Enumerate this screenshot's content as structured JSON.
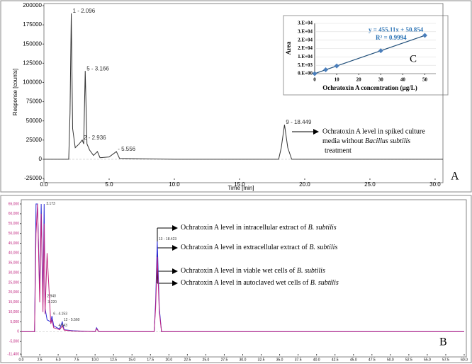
{
  "chart_data": [
    {
      "type": "line",
      "label": "A",
      "xlabel": "Time [min]",
      "ylabel": "Response [counts]",
      "color": "#333333",
      "xlim": [
        0,
        30.6
      ],
      "ylim": [
        -25000,
        200000
      ],
      "xticks": [
        {
          "value": 0,
          "label": "0.0"
        },
        {
          "value": 5,
          "label": "5.0"
        },
        {
          "value": 10,
          "label": "10.0"
        },
        {
          "value": 15,
          "label": "15.0"
        },
        {
          "value": 20,
          "label": "20.0"
        },
        {
          "value": 25,
          "label": "25.0"
        },
        {
          "value": 30,
          "label": "30.0"
        }
      ],
      "yticks": [
        -25000,
        0,
        25000,
        50000,
        75000,
        100000,
        125000,
        150000,
        175000,
        200000
      ],
      "x": [
        0,
        1.9,
        2.0,
        2.096,
        2.2,
        2.4,
        2.7,
        2.936,
        3.05,
        3.166,
        3.3,
        3.5,
        3.8,
        4.1,
        4.3,
        5.0,
        5.556,
        5.8,
        10,
        18.0,
        18.2,
        18.449,
        18.7,
        19.0,
        30.6
      ],
      "values": [
        0,
        0,
        60000,
        190000,
        40000,
        15000,
        20000,
        25000,
        20000,
        115000,
        20000,
        12000,
        5000,
        10000,
        2000,
        3000,
        10000,
        1000,
        0,
        0,
        15000,
        45000,
        15000,
        0,
        0
      ],
      "peak_labels": [
        {
          "label": "1 - 2.096",
          "x": 2.096,
          "y": 190000
        },
        {
          "label": "5 - 3.166",
          "x": 3.166,
          "y": 115000
        },
        {
          "label": "2 - 2.936",
          "x": 2.936,
          "y": 25000
        },
        {
          "label": "- 5.556",
          "x": 5.556,
          "y": 10000
        },
        {
          "label": "9 - 18.449",
          "x": 18.449,
          "y": 45000
        }
      ],
      "annotation": [
        "Ochratoxin A level in spiked culture",
        "media without ",
        "Bacillus subtilis",
        " treatment"
      ]
    },
    {
      "type": "scatter",
      "label": "C",
      "xlabel": "Ochratoxin A concentration (µg/L)",
      "ylabel": "Area",
      "color": "#4a7ebb",
      "xlim": [
        0,
        55
      ],
      "ylim": [
        0,
        30000
      ],
      "xticks": [
        0,
        10,
        20,
        30,
        40,
        50
      ],
      "yticks": [
        {
          "value": 0,
          "label": "0.E+00"
        },
        {
          "value": 5000,
          "label": "5.E+03"
        },
        {
          "value": 10000,
          "label": "1.E+04"
        },
        {
          "value": 15000,
          "label": "2.E+04"
        },
        {
          "value": 20000,
          "label": "2.E+04"
        },
        {
          "value": 25000,
          "label": "3.E+04"
        },
        {
          "value": 30000,
          "label": "3.E+04"
        }
      ],
      "x": [
        0,
        5,
        10,
        30,
        50
      ],
      "values": [
        0,
        2326,
        4600,
        13700,
        22800
      ],
      "trendline": {
        "label": "y = 455.11x + 50.854",
        "slope": 455.11,
        "intercept": 50.854,
        "r2_label": "R² = 0.9994"
      }
    },
    {
      "type": "line",
      "label": "B",
      "xlim": [
        0,
        60
      ],
      "ylim": [
        -11400,
        65000
      ],
      "xticks": [
        {
          "value": 0,
          "label": "0.0"
        },
        {
          "value": 2.5,
          "label": "2.5"
        },
        {
          "value": 5,
          "label": "5.0"
        },
        {
          "value": 7.5,
          "label": "7.5"
        },
        {
          "value": 10,
          "label": "10.0"
        },
        {
          "value": 12.5,
          "label": "12.5"
        },
        {
          "value": 15,
          "label": "15.0"
        },
        {
          "value": 17.5,
          "label": "17.5"
        },
        {
          "value": 20,
          "label": "20.0"
        },
        {
          "value": 22.5,
          "label": "22.5"
        },
        {
          "value": 25,
          "label": "25.0"
        },
        {
          "value": 27.5,
          "label": "27.5"
        },
        {
          "value": 30,
          "label": "30.0"
        },
        {
          "value": 32.5,
          "label": "32.5"
        },
        {
          "value": 35,
          "label": "35.0"
        },
        {
          "value": 37.5,
          "label": "37.5"
        },
        {
          "value": 40,
          "label": "40.0"
        },
        {
          "value": 42.5,
          "label": "42.5"
        },
        {
          "value": 45,
          "label": "45.0"
        },
        {
          "value": 47.5,
          "label": "47.5"
        },
        {
          "value": 50,
          "label": "50.0"
        },
        {
          "value": 52.5,
          "label": "52.5"
        },
        {
          "value": 55,
          "label": "55.0"
        },
        {
          "value": 57.5,
          "label": "57.5"
        },
        {
          "value": 60,
          "label": "60.0"
        }
      ],
      "yticks": [
        {
          "value": -11400,
          "label": "-11,400"
        },
        {
          "value": -5000,
          "label": "-5,000"
        },
        {
          "value": 0,
          "label": "0"
        },
        {
          "value": 5000,
          "label": "5,000"
        },
        {
          "value": 10000,
          "label": "10,000"
        },
        {
          "value": 15000,
          "label": "15,000"
        },
        {
          "value": 20000,
          "label": "20,000"
        },
        {
          "value": 25000,
          "label": "25,000"
        },
        {
          "value": 30000,
          "label": "30,000"
        },
        {
          "value": 35000,
          "label": "35,000"
        },
        {
          "value": 40000,
          "label": "40,000"
        },
        {
          "value": 45000,
          "label": "45,000"
        },
        {
          "value": 50000,
          "label": "50,000"
        },
        {
          "value": 55000,
          "label": "55,000"
        },
        {
          "value": 60000,
          "label": "60,000"
        },
        {
          "value": 65000,
          "label": "65,000"
        }
      ],
      "x": [
        0,
        1.8,
        2.0,
        2.2,
        2.5,
        2.7,
        2.94,
        3.1,
        3.22,
        3.5,
        4.0,
        4.153,
        4.4,
        4.843,
        5.2,
        5.56,
        5.8,
        7,
        10,
        10.2,
        10.5,
        18,
        18.2,
        18.423,
        18.7,
        19,
        60
      ],
      "series": [
        {
          "color": "#2b2bd6",
          "values": [
            0,
            0,
            65000,
            65000,
            20000,
            65000,
            15000,
            65000,
            12000,
            6000,
            5000,
            8000,
            3000,
            2000,
            1500,
            5000,
            1000,
            500,
            0,
            2000,
            0,
            0,
            15000,
            46000,
            12000,
            0,
            0
          ]
        },
        {
          "color": "#c0237f",
          "values": [
            0,
            0,
            50000,
            65000,
            15000,
            60000,
            10000,
            55000,
            9000,
            40000,
            4000,
            6000,
            2000,
            1500,
            1000,
            3000,
            800,
            300,
            0,
            1500,
            0,
            0,
            12000,
            38000,
            10000,
            0,
            0
          ]
        }
      ],
      "peak_labels": [
        {
          "label": "13 - 18.423",
          "x": 18.423,
          "y": 46000
        },
        {
          "label": "3.173",
          "x": 3.2,
          "y": 64000
        },
        {
          "label": "2.940",
          "x": 3.3,
          "y": 17000
        },
        {
          "label": "3.220",
          "x": 3.4,
          "y": 14000
        },
        {
          "label": "6 - 4.153",
          "x": 4.153,
          "y": 8000
        },
        {
          "label": "12 - 5.560",
          "x": 5.56,
          "y": 5000
        },
        {
          "label": "4.843",
          "x": 4.843,
          "y": 2000
        }
      ],
      "annotation": [
        "Ochratoxin A level in intracellular extract of ",
        "B. subtilis",
        "Ochratoxin A level in extracellular  extract of ",
        "B. subtilis",
        "Ochratoxin A level in viable wet cells of ",
        "B. subtilis",
        "Ochratoxin A level in autoclaved wet cells of ",
        "B. subtilis"
      ]
    }
  ]
}
